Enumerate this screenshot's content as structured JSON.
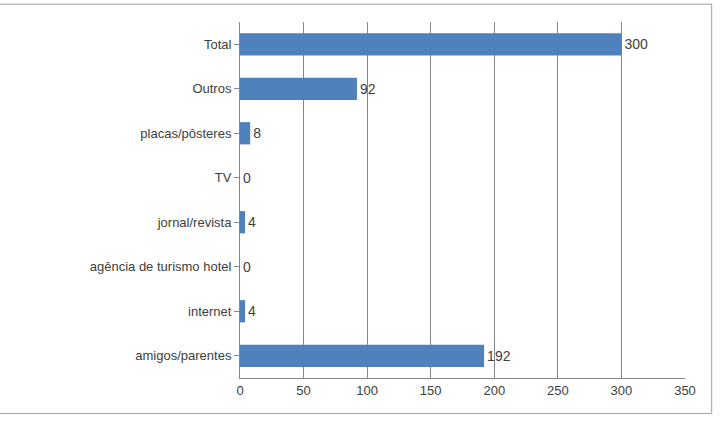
{
  "chart_data": {
    "type": "bar",
    "orientation": "horizontal",
    "categories": [
      "amigos/parentes",
      "internet",
      "agência de turismo hotel",
      "jornal/revista",
      "TV",
      "placas/pôsteres",
      "Outros",
      "Total"
    ],
    "values": [
      192,
      4,
      0,
      4,
      0,
      8,
      92,
      300
    ],
    "color": "#4f81bd",
    "xlim": [
      0,
      350
    ],
    "xticks": [
      0,
      50,
      100,
      150,
      200,
      250,
      300,
      350
    ],
    "grid": true,
    "data_labels": true
  }
}
